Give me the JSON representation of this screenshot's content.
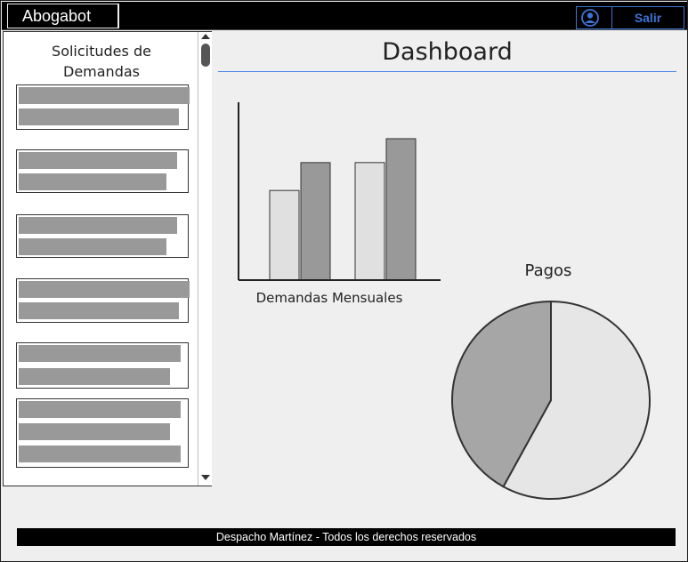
{
  "header": {
    "brand": "Abogabot",
    "logout_label": "Salir"
  },
  "sidebar": {
    "title_line1": "Solicitudes de",
    "title_line2": "Demandas",
    "items": [
      {
        "bars": 2
      },
      {
        "bars": 2
      },
      {
        "bars": 2
      },
      {
        "bars": 2
      },
      {
        "bars": 2
      },
      {
        "bars": 3
      }
    ]
  },
  "main": {
    "title": "Dashboard"
  },
  "chart_data": [
    {
      "type": "bar",
      "title": "",
      "xlabel": "Demandas Mensuales",
      "ylabel": "",
      "categories": [
        "",
        ""
      ],
      "series": [
        {
          "values": [
            45,
            59
          ],
          "color": "#e0e0e0"
        },
        {
          "values": [
            59,
            71
          ],
          "color": "#999999"
        }
      ],
      "ylim": [
        0,
        100
      ],
      "grid": false
    },
    {
      "type": "pie",
      "title": "Pagos",
      "slices": [
        {
          "value": 58,
          "color": "#e6e6e6"
        },
        {
          "value": 42,
          "color": "#a6a6a6"
        }
      ]
    }
  ],
  "footer": {
    "text": "Despacho Martínez - Todos los derechos reservados"
  },
  "colors": {
    "accent": "#3b74d6",
    "rule": "#4a86e8"
  }
}
